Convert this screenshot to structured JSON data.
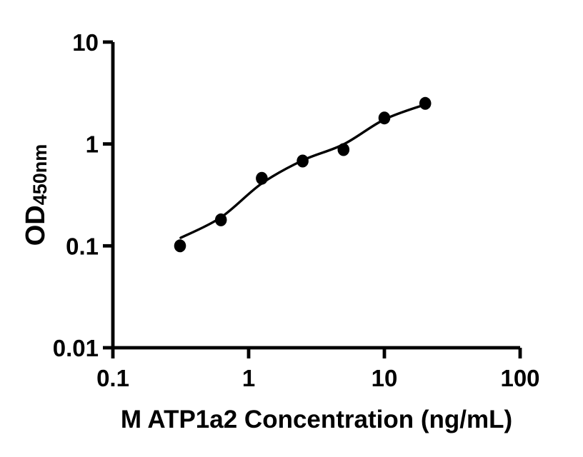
{
  "page": {
    "background_color": "#ffffff",
    "foreground_color": "#000000"
  },
  "chart_data": {
    "type": "scatter",
    "title": "",
    "xlabel": "M ATP1a2 Concentration (ng/mL)",
    "ylabel_main": "OD",
    "ylabel_sub": "450nm",
    "x_scale": "log",
    "y_scale": "log",
    "xlim": [
      0.1,
      100
    ],
    "ylim": [
      0.01,
      10
    ],
    "x_ticks": {
      "values": [
        0.1,
        1,
        10,
        100
      ],
      "labels": [
        "0.1",
        "1",
        "10",
        "100"
      ]
    },
    "y_ticks": {
      "values": [
        0.01,
        0.1,
        1,
        10
      ],
      "labels": [
        "0.01",
        "0.1",
        "1",
        "10"
      ]
    },
    "grid": false,
    "legend": false,
    "series": [
      {
        "name": "standard-points",
        "type": "scatter",
        "marker": "filled-circle",
        "color": "#000000",
        "x": [
          0.3125,
          0.625,
          1.25,
          2.5,
          5,
          10,
          20
        ],
        "y": [
          0.1,
          0.18,
          0.46,
          0.68,
          0.88,
          1.8,
          2.5
        ]
      },
      {
        "name": "fitted-curve",
        "type": "line",
        "color": "#000000",
        "x": [
          0.316,
          0.625,
          1.25,
          2.5,
          5,
          10,
          20
        ],
        "y": [
          0.12,
          0.19,
          0.41,
          0.69,
          0.99,
          1.74,
          2.44
        ]
      }
    ]
  }
}
